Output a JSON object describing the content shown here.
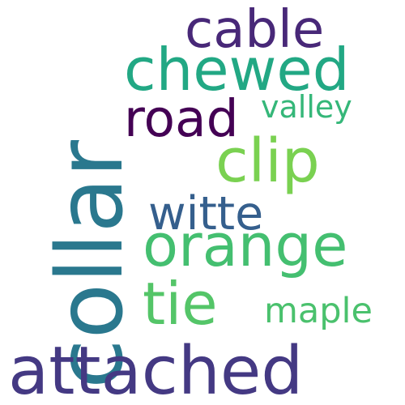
{
  "words": [
    {
      "key": "collar",
      "text": "collar",
      "color": "#2a788e",
      "orientation": "vertical"
    },
    {
      "key": "attached",
      "text": "attached",
      "color": "#443983",
      "orientation": "horizontal"
    },
    {
      "key": "chewed",
      "text": "chewed",
      "color": "#22a884",
      "orientation": "horizontal"
    },
    {
      "key": "clip",
      "text": "clip",
      "color": "#7ad151",
      "orientation": "horizontal"
    },
    {
      "key": "orange",
      "text": "orange",
      "color": "#44bf70",
      "orientation": "horizontal"
    },
    {
      "key": "tie",
      "text": "tie",
      "color": "#54c568",
      "orientation": "horizontal"
    },
    {
      "key": "cable",
      "text": "cable",
      "color": "#482878",
      "orientation": "horizontal"
    },
    {
      "key": "road",
      "text": "road",
      "color": "#440154",
      "orientation": "horizontal"
    },
    {
      "key": "witte",
      "text": "witte",
      "color": "#355f8d",
      "orientation": "horizontal"
    },
    {
      "key": "valley",
      "text": "valley",
      "color": "#35b779",
      "orientation": "horizontal"
    },
    {
      "key": "maple",
      "text": "maple",
      "color": "#4ac16d",
      "orientation": "horizontal"
    }
  ]
}
